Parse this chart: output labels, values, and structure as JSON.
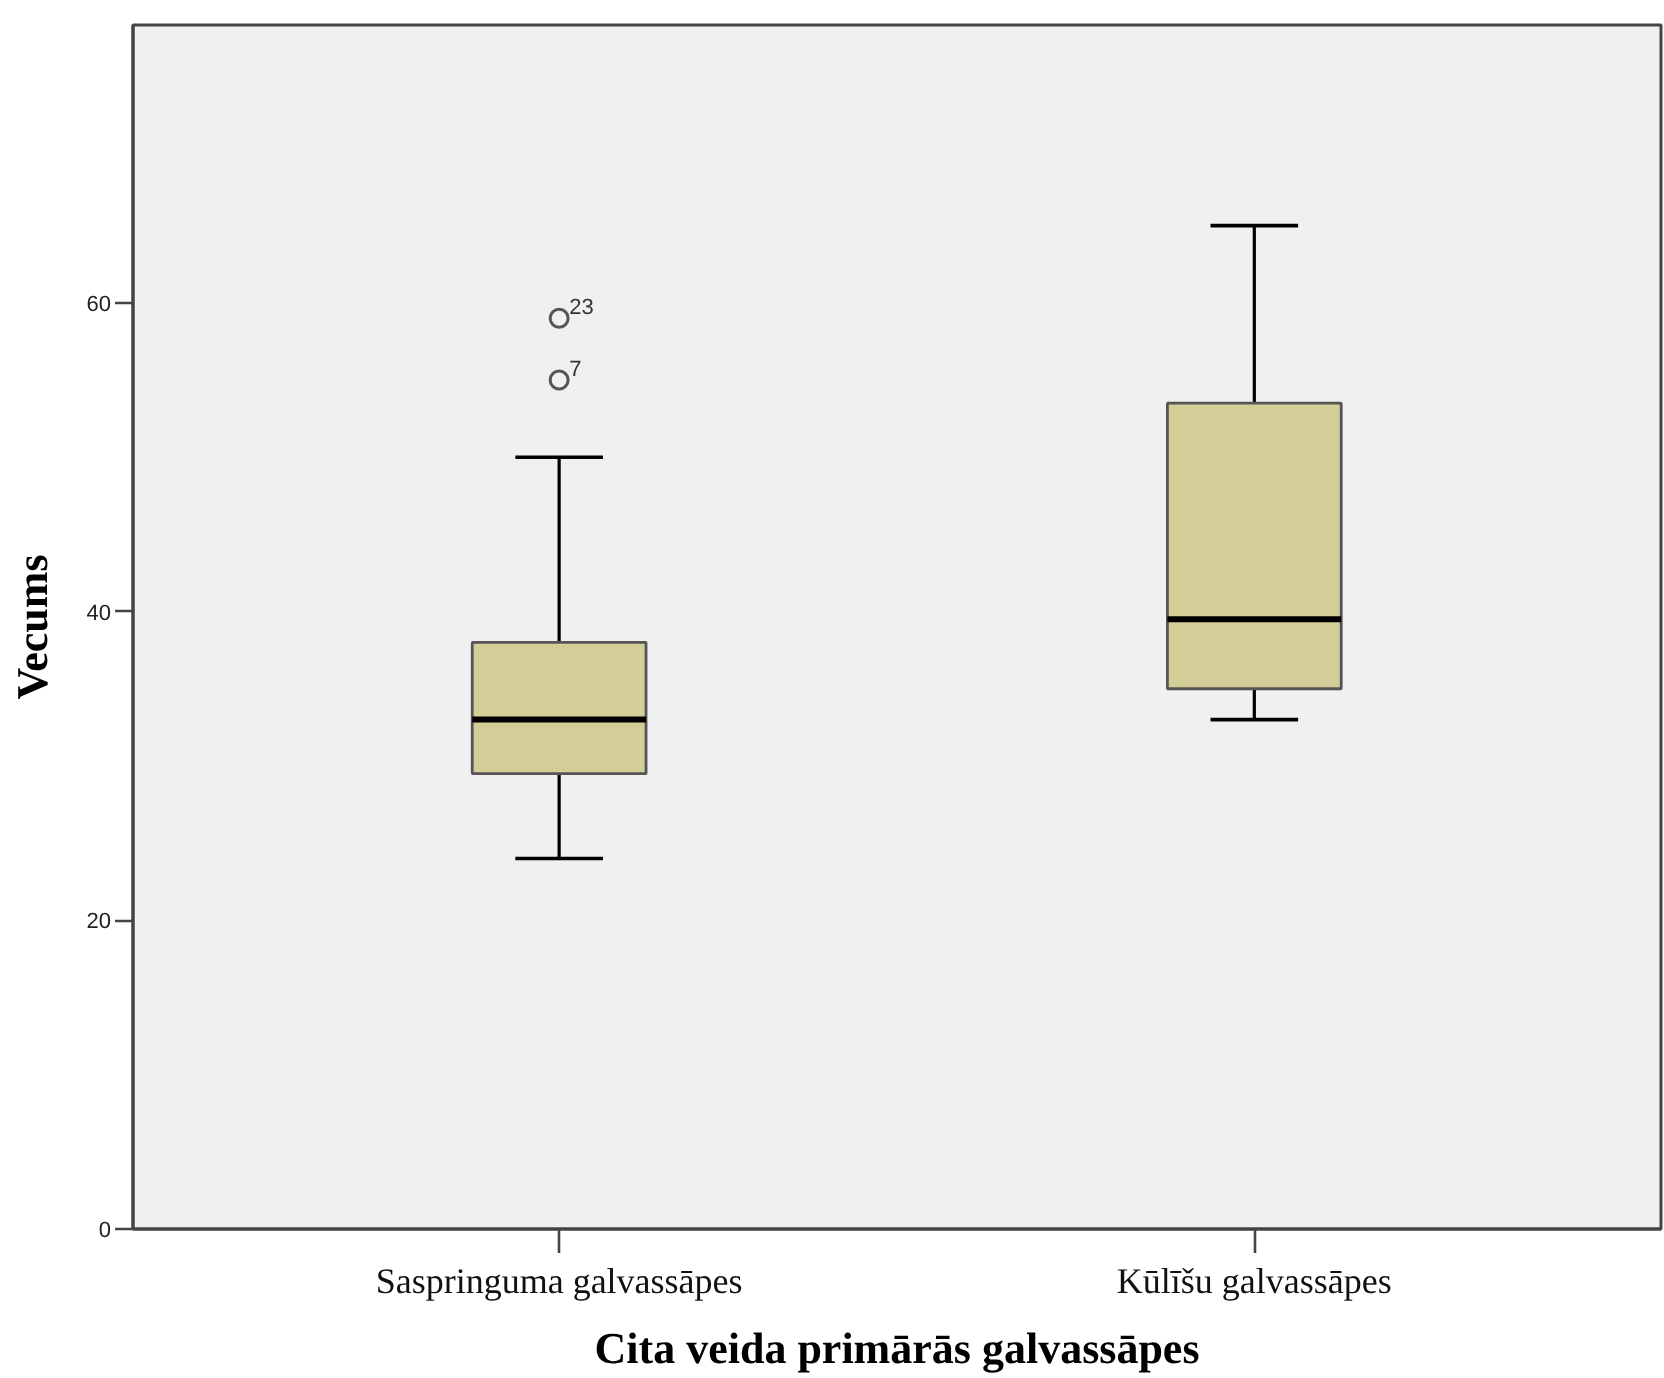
{
  "chart_data": {
    "type": "box",
    "xlabel": "Cita veida primārās galvassāpes",
    "ylabel": "Vecums",
    "categories": [
      "Saspringuma galvassāpes",
      "Kūlīšu galvassāpes"
    ],
    "series": [
      {
        "color": "#d3ce98",
        "boxes": [
          {
            "low": 24,
            "q1": 29.5,
            "median": 33,
            "q3": 38,
            "high": 50,
            "outliers": [
              59,
              55
            ]
          },
          {
            "low": 33,
            "q1": 35,
            "median": 39.5,
            "q3": 53.5,
            "high": 65
          }
        ]
      }
    ],
    "ylim": [
      0,
      78
    ],
    "yticks": [
      0,
      20,
      40,
      60
    ],
    "grid": false,
    "annotations": [
      "23",
      "7"
    ]
  }
}
